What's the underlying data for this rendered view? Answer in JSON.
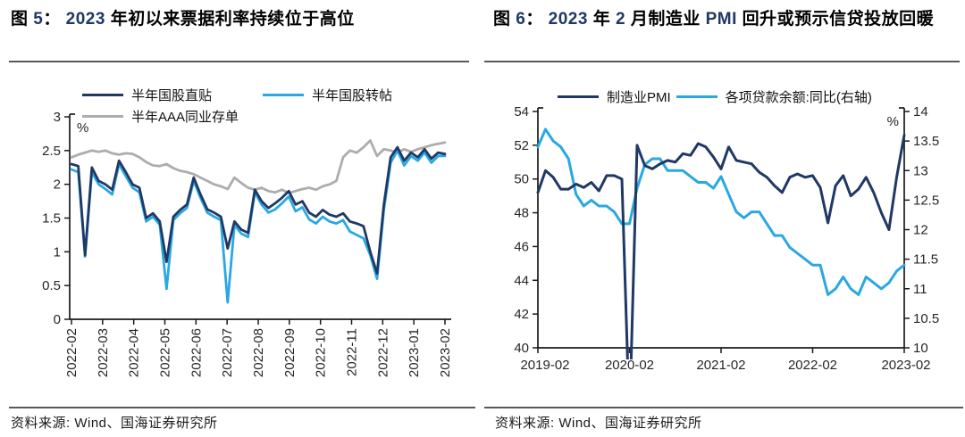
{
  "colors": {
    "navy": "#1f3864",
    "cyan": "#29a8e2",
    "gray": "#adadad",
    "axis": "#1a1a1a",
    "title_accent": "#1f3864",
    "rule": "#595959"
  },
  "figure5": {
    "title_parts": [
      {
        "text": "图 ",
        "accent": false
      },
      {
        "text": "5",
        "accent": true
      },
      {
        "text": "： ",
        "accent": false
      },
      {
        "text": "2023",
        "accent": true
      },
      {
        "text": " 年初以来票据利率持续位于高位",
        "accent": false
      }
    ],
    "source": "资料来源: Wind、国海证券研究所"
  },
  "figure6": {
    "title_parts": [
      {
        "text": "图 ",
        "accent": false
      },
      {
        "text": "6",
        "accent": true
      },
      {
        "text": "： ",
        "accent": false
      },
      {
        "text": "2023",
        "accent": true
      },
      {
        "text": " 年 ",
        "accent": false
      },
      {
        "text": "2",
        "accent": true
      },
      {
        "text": " 月制造业 ",
        "accent": false
      },
      {
        "text": "PMI",
        "accent": true
      },
      {
        "text": " 回升或预示信贷投放回暖",
        "accent": false
      }
    ],
    "source": "资料来源: Wind、国海证券研究所"
  },
  "chart_data": [
    {
      "id": "fig5",
      "type": "line",
      "title": "图 5: 2023 年初以来票据利率持续位于高位",
      "x_description": "weekly observations, 2022-02 through 2023-02",
      "x_tick_labels": [
        "2022-02",
        "2022-03",
        "2022-04",
        "2022-05",
        "2022-06",
        "2022-07",
        "2022-08",
        "2022-09",
        "2022-10",
        "2022-11",
        "2022-12",
        "2023-01",
        "2023-02"
      ],
      "ylabel": "%",
      "ylim": [
        0,
        3
      ],
      "yticks": [
        0,
        0.5,
        1,
        1.5,
        2,
        2.5,
        3
      ],
      "legend_position": "top",
      "series": [
        {
          "name": "半年国股直贴",
          "color_key": "navy",
          "values": [
            2.3,
            2.27,
            0.95,
            2.25,
            2.05,
            2.0,
            1.92,
            2.35,
            2.18,
            2.0,
            1.95,
            1.5,
            1.57,
            1.45,
            0.85,
            1.52,
            1.62,
            1.7,
            2.1,
            1.85,
            1.63,
            1.58,
            1.52,
            1.05,
            1.45,
            1.33,
            1.28,
            1.92,
            1.75,
            1.65,
            1.72,
            1.8,
            1.9,
            1.7,
            1.75,
            1.58,
            1.52,
            1.62,
            1.55,
            1.52,
            1.57,
            1.45,
            1.42,
            1.38,
            1.0,
            0.68,
            1.7,
            2.4,
            2.55,
            2.35,
            2.47,
            2.4,
            2.52,
            2.38,
            2.47,
            2.45
          ]
        },
        {
          "name": "半年国股转帖",
          "color_key": "cyan",
          "values": [
            2.22,
            2.18,
            0.93,
            2.18,
            2.0,
            1.93,
            1.85,
            2.3,
            2.12,
            1.95,
            1.88,
            1.45,
            1.52,
            1.4,
            0.45,
            1.47,
            1.57,
            1.65,
            2.05,
            1.8,
            1.58,
            1.52,
            1.47,
            0.25,
            1.4,
            1.27,
            1.22,
            1.88,
            1.7,
            1.58,
            1.63,
            1.72,
            1.82,
            1.6,
            1.66,
            1.48,
            1.42,
            1.52,
            1.45,
            1.42,
            1.47,
            1.3,
            1.25,
            1.2,
            0.95,
            0.6,
            1.62,
            2.32,
            2.5,
            2.28,
            2.42,
            2.35,
            2.47,
            2.32,
            2.42,
            2.42
          ]
        },
        {
          "name": "半年AAA同业存单",
          "color_key": "gray",
          "values": [
            2.4,
            2.44,
            2.47,
            2.5,
            2.48,
            2.5,
            2.46,
            2.44,
            2.46,
            2.45,
            2.4,
            2.33,
            2.28,
            2.27,
            2.3,
            2.24,
            2.2,
            2.18,
            2.15,
            2.1,
            2.05,
            2.0,
            1.97,
            1.93,
            2.1,
            2.02,
            1.95,
            1.92,
            1.95,
            1.9,
            1.88,
            1.92,
            1.87,
            1.9,
            1.93,
            1.95,
            1.92,
            1.97,
            2.0,
            2.05,
            2.4,
            2.5,
            2.47,
            2.55,
            2.65,
            2.42,
            2.52,
            2.5,
            2.47,
            2.52,
            2.48,
            2.52,
            2.55,
            2.58,
            2.6,
            2.62
          ]
        }
      ]
    },
    {
      "id": "fig6",
      "type": "line",
      "title": "图 6: 2023 年 2 月制造业 PMI 回升或预示信贷投放回暖",
      "x_description": "monthly observations, 2019-02 through 2023-02",
      "x_tick_labels": [
        "2019-02",
        "2020-02",
        "2021-02",
        "2022-02",
        "2023-02"
      ],
      "x_tick_month_indices": [
        0,
        12,
        24,
        36,
        48
      ],
      "left_ylim": [
        40,
        54
      ],
      "left_yticks": [
        40,
        42,
        44,
        46,
        48,
        50,
        52,
        54
      ],
      "right_ylim": [
        10,
        14
      ],
      "right_yticks": [
        10,
        10.5,
        11,
        11.5,
        12,
        12.5,
        13,
        13.5,
        14
      ],
      "right_ylabel": "%",
      "legend_position": "top",
      "series": [
        {
          "name": "制造业PMI",
          "axis": "left",
          "color_key": "navy",
          "values": [
            49.2,
            50.5,
            50.1,
            49.4,
            49.4,
            49.7,
            49.5,
            49.8,
            49.3,
            50.2,
            50.2,
            50.0,
            35.7,
            52.0,
            50.8,
            50.6,
            50.9,
            51.1,
            51.0,
            51.5,
            51.4,
            52.1,
            51.9,
            51.3,
            50.6,
            51.9,
            51.1,
            51.0,
            50.9,
            50.4,
            50.1,
            49.6,
            49.2,
            50.1,
            50.3,
            50.1,
            50.2,
            49.5,
            47.4,
            49.6,
            50.2,
            49.0,
            49.4,
            50.1,
            49.2,
            48.0,
            47.0,
            50.1,
            52.6
          ]
        },
        {
          "name": "各项贷款余额:同比(右轴)",
          "axis": "right",
          "color_key": "cyan",
          "values": [
            13.4,
            13.7,
            13.5,
            13.4,
            13.2,
            12.6,
            12.4,
            12.5,
            12.4,
            12.4,
            12.3,
            12.1,
            12.1,
            12.7,
            13.1,
            13.2,
            13.2,
            13.0,
            13.0,
            13.0,
            12.9,
            12.8,
            12.8,
            12.7,
            12.9,
            12.6,
            12.3,
            12.2,
            12.3,
            12.3,
            12.1,
            11.9,
            11.9,
            11.7,
            11.6,
            11.5,
            11.4,
            11.4,
            10.9,
            11.0,
            11.2,
            11.0,
            10.9,
            11.2,
            11.1,
            11.0,
            11.1,
            11.3,
            11.4
          ]
        }
      ]
    }
  ]
}
